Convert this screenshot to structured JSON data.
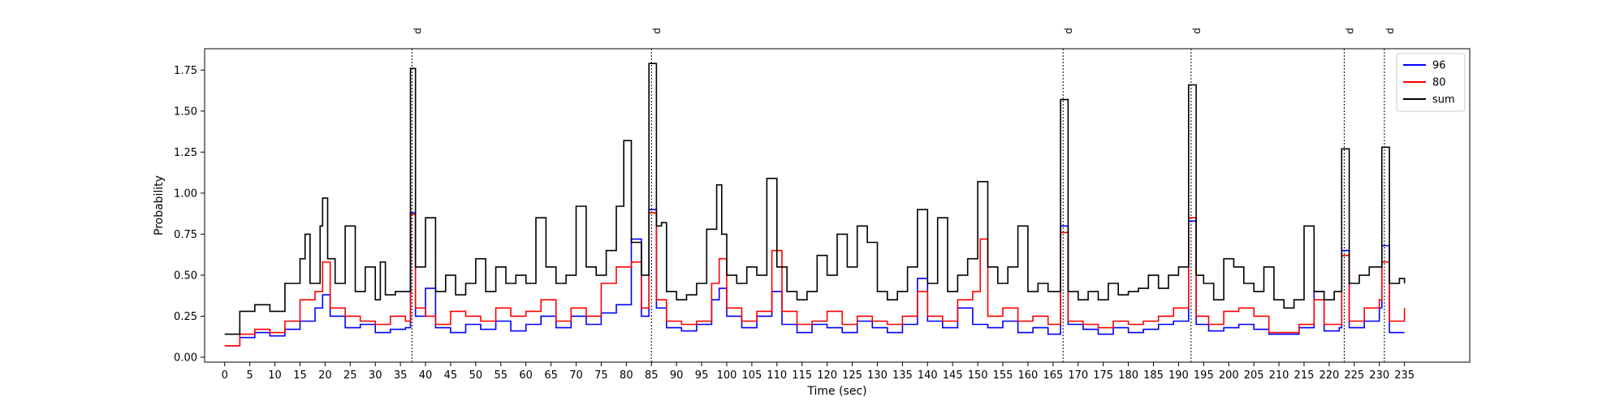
{
  "chart_data": {
    "type": "line",
    "xlabel": "Time (sec)",
    "ylabel": "Probability",
    "xlim": [
      -4,
      248
    ],
    "ylim": [
      -0.03,
      1.88
    ],
    "x_ticks": [
      0,
      5,
      10,
      15,
      20,
      25,
      30,
      35,
      40,
      45,
      50,
      55,
      60,
      65,
      70,
      75,
      80,
      85,
      90,
      95,
      100,
      105,
      110,
      115,
      120,
      125,
      130,
      135,
      140,
      145,
      150,
      155,
      160,
      165,
      170,
      175,
      180,
      185,
      190,
      195,
      200,
      205,
      210,
      215,
      220,
      225,
      230,
      235
    ],
    "y_ticks": [
      0.0,
      0.25,
      0.5,
      0.75,
      1.0,
      1.25,
      1.5,
      1.75
    ],
    "y_tick_labels": [
      "0.00",
      "0.25",
      "0.50",
      "0.75",
      "1.00",
      "1.25",
      "1.50",
      "1.75"
    ],
    "grid": false,
    "legend_position": "top-right",
    "step": true,
    "markers": [
      {
        "x": 37.3,
        "label": "p"
      },
      {
        "x": 85.0,
        "label": "p"
      },
      {
        "x": 167.0,
        "label": "p"
      },
      {
        "x": 192.5,
        "label": "p"
      },
      {
        "x": 223.0,
        "label": "p"
      },
      {
        "x": 231.0,
        "label": "p"
      }
    ],
    "series": [
      {
        "name": "96",
        "color": "#0000ff",
        "points": [
          [
            0,
            0.07
          ],
          [
            3,
            0.12
          ],
          [
            6,
            0.15
          ],
          [
            9,
            0.13
          ],
          [
            12,
            0.17
          ],
          [
            15,
            0.22
          ],
          [
            18,
            0.3
          ],
          [
            19.5,
            0.38
          ],
          [
            21,
            0.25
          ],
          [
            24,
            0.18
          ],
          [
            27,
            0.2
          ],
          [
            30,
            0.15
          ],
          [
            33,
            0.17
          ],
          [
            36,
            0.18
          ],
          [
            37,
            0.88
          ],
          [
            38,
            0.25
          ],
          [
            40,
            0.42
          ],
          [
            42,
            0.18
          ],
          [
            45,
            0.15
          ],
          [
            48,
            0.2
          ],
          [
            51,
            0.17
          ],
          [
            54,
            0.22
          ],
          [
            57,
            0.16
          ],
          [
            60,
            0.2
          ],
          [
            63,
            0.25
          ],
          [
            66,
            0.18
          ],
          [
            69,
            0.25
          ],
          [
            72,
            0.2
          ],
          [
            75,
            0.27
          ],
          [
            78,
            0.32
          ],
          [
            81,
            0.72
          ],
          [
            83,
            0.25
          ],
          [
            84.5,
            0.9
          ],
          [
            86,
            0.3
          ],
          [
            88,
            0.18
          ],
          [
            91,
            0.16
          ],
          [
            94,
            0.2
          ],
          [
            97,
            0.35
          ],
          [
            98.5,
            0.42
          ],
          [
            100,
            0.25
          ],
          [
            103,
            0.18
          ],
          [
            106,
            0.25
          ],
          [
            109,
            0.4
          ],
          [
            111,
            0.2
          ],
          [
            114,
            0.15
          ],
          [
            117,
            0.2
          ],
          [
            120,
            0.18
          ],
          [
            123,
            0.15
          ],
          [
            126,
            0.22
          ],
          [
            129,
            0.18
          ],
          [
            132,
            0.15
          ],
          [
            135,
            0.2
          ],
          [
            138,
            0.48
          ],
          [
            140,
            0.22
          ],
          [
            143,
            0.18
          ],
          [
            146,
            0.3
          ],
          [
            149,
            0.2
          ],
          [
            152,
            0.18
          ],
          [
            155,
            0.22
          ],
          [
            158,
            0.15
          ],
          [
            161,
            0.18
          ],
          [
            164,
            0.14
          ],
          [
            166.5,
            0.8
          ],
          [
            168,
            0.2
          ],
          [
            171,
            0.17
          ],
          [
            174,
            0.14
          ],
          [
            177,
            0.18
          ],
          [
            180,
            0.15
          ],
          [
            183,
            0.17
          ],
          [
            186,
            0.2
          ],
          [
            189,
            0.22
          ],
          [
            192,
            0.83
          ],
          [
            193.5,
            0.2
          ],
          [
            196,
            0.16
          ],
          [
            199,
            0.18
          ],
          [
            202,
            0.2
          ],
          [
            205,
            0.17
          ],
          [
            208,
            0.14
          ],
          [
            211,
            0.14
          ],
          [
            214,
            0.18
          ],
          [
            217,
            0.4
          ],
          [
            219,
            0.16
          ],
          [
            222,
            0.18
          ],
          [
            222.5,
            0.65
          ],
          [
            224,
            0.18
          ],
          [
            227,
            0.22
          ],
          [
            230,
            0.3
          ],
          [
            230.5,
            0.68
          ],
          [
            232,
            0.15
          ],
          [
            235,
            0.15
          ]
        ]
      },
      {
        "name": "80",
        "color": "#ff0000",
        "points": [
          [
            0,
            0.07
          ],
          [
            3,
            0.14
          ],
          [
            6,
            0.17
          ],
          [
            9,
            0.15
          ],
          [
            12,
            0.22
          ],
          [
            15,
            0.35
          ],
          [
            18,
            0.4
          ],
          [
            19.5,
            0.58
          ],
          [
            21,
            0.3
          ],
          [
            24,
            0.25
          ],
          [
            27,
            0.22
          ],
          [
            30,
            0.2
          ],
          [
            33,
            0.25
          ],
          [
            36,
            0.22
          ],
          [
            37,
            0.87
          ],
          [
            38,
            0.3
          ],
          [
            40,
            0.25
          ],
          [
            42,
            0.2
          ],
          [
            45,
            0.28
          ],
          [
            48,
            0.25
          ],
          [
            51,
            0.22
          ],
          [
            54,
            0.3
          ],
          [
            57,
            0.25
          ],
          [
            60,
            0.28
          ],
          [
            63,
            0.35
          ],
          [
            66,
            0.22
          ],
          [
            69,
            0.3
          ],
          [
            72,
            0.25
          ],
          [
            75,
            0.45
          ],
          [
            78,
            0.55
          ],
          [
            81,
            0.58
          ],
          [
            83,
            0.3
          ],
          [
            84.5,
            0.88
          ],
          [
            86,
            0.35
          ],
          [
            88,
            0.22
          ],
          [
            91,
            0.2
          ],
          [
            94,
            0.22
          ],
          [
            97,
            0.45
          ],
          [
            98.5,
            0.6
          ],
          [
            100,
            0.3
          ],
          [
            103,
            0.22
          ],
          [
            106,
            0.28
          ],
          [
            109,
            0.65
          ],
          [
            111,
            0.28
          ],
          [
            114,
            0.2
          ],
          [
            117,
            0.22
          ],
          [
            120,
            0.28
          ],
          [
            123,
            0.2
          ],
          [
            126,
            0.25
          ],
          [
            129,
            0.22
          ],
          [
            132,
            0.2
          ],
          [
            135,
            0.25
          ],
          [
            138,
            0.4
          ],
          [
            140,
            0.25
          ],
          [
            143,
            0.22
          ],
          [
            146,
            0.35
          ],
          [
            149,
            0.4
          ],
          [
            150.5,
            0.72
          ],
          [
            152,
            0.25
          ],
          [
            155,
            0.3
          ],
          [
            158,
            0.22
          ],
          [
            161,
            0.25
          ],
          [
            164,
            0.2
          ],
          [
            166.5,
            0.76
          ],
          [
            168,
            0.22
          ],
          [
            171,
            0.2
          ],
          [
            174,
            0.18
          ],
          [
            177,
            0.22
          ],
          [
            180,
            0.2
          ],
          [
            183,
            0.22
          ],
          [
            186,
            0.25
          ],
          [
            189,
            0.3
          ],
          [
            192,
            0.85
          ],
          [
            193.5,
            0.25
          ],
          [
            196,
            0.2
          ],
          [
            199,
            0.28
          ],
          [
            202,
            0.3
          ],
          [
            205,
            0.25
          ],
          [
            208,
            0.15
          ],
          [
            211,
            0.15
          ],
          [
            214,
            0.2
          ],
          [
            217,
            0.35
          ],
          [
            219,
            0.2
          ],
          [
            222,
            0.2
          ],
          [
            222.5,
            0.62
          ],
          [
            224,
            0.22
          ],
          [
            227,
            0.3
          ],
          [
            230,
            0.35
          ],
          [
            230.5,
            0.58
          ],
          [
            232,
            0.22
          ],
          [
            235,
            0.3
          ]
        ]
      },
      {
        "name": "sum",
        "color": "#000000",
        "points": [
          [
            0,
            0.14
          ],
          [
            3,
            0.28
          ],
          [
            6,
            0.32
          ],
          [
            9,
            0.28
          ],
          [
            12,
            0.45
          ],
          [
            15,
            0.6
          ],
          [
            16,
            0.75
          ],
          [
            17,
            0.45
          ],
          [
            19,
            0.8
          ],
          [
            19.5,
            0.97
          ],
          [
            20.5,
            0.6
          ],
          [
            22,
            0.45
          ],
          [
            24,
            0.8
          ],
          [
            26,
            0.4
          ],
          [
            28,
            0.55
          ],
          [
            30,
            0.35
          ],
          [
            31,
            0.58
          ],
          [
            32,
            0.38
          ],
          [
            34,
            0.4
          ],
          [
            36,
            0.4
          ],
          [
            37,
            1.76
          ],
          [
            38,
            0.55
          ],
          [
            40,
            0.85
          ],
          [
            42,
            0.4
          ],
          [
            44,
            0.5
          ],
          [
            46,
            0.38
          ],
          [
            48,
            0.45
          ],
          [
            50,
            0.6
          ],
          [
            52,
            0.4
          ],
          [
            54,
            0.55
          ],
          [
            56,
            0.45
          ],
          [
            58,
            0.5
          ],
          [
            60,
            0.45
          ],
          [
            62,
            0.85
          ],
          [
            64,
            0.55
          ],
          [
            66,
            0.45
          ],
          [
            68,
            0.5
          ],
          [
            70,
            0.92
          ],
          [
            72,
            0.55
          ],
          [
            74,
            0.5
          ],
          [
            76,
            0.65
          ],
          [
            78,
            0.92
          ],
          [
            79.5,
            1.32
          ],
          [
            81,
            0.7
          ],
          [
            83,
            0.5
          ],
          [
            84.5,
            1.79
          ],
          [
            86,
            0.8
          ],
          [
            87,
            0.82
          ],
          [
            88,
            0.4
          ],
          [
            90,
            0.35
          ],
          [
            92,
            0.38
          ],
          [
            94,
            0.45
          ],
          [
            96,
            0.78
          ],
          [
            98,
            1.05
          ],
          [
            99,
            0.75
          ],
          [
            100,
            0.5
          ],
          [
            102,
            0.45
          ],
          [
            104,
            0.55
          ],
          [
            106,
            0.5
          ],
          [
            108,
            1.09
          ],
          [
            110,
            0.55
          ],
          [
            112,
            0.4
          ],
          [
            114,
            0.35
          ],
          [
            116,
            0.4
          ],
          [
            118,
            0.62
          ],
          [
            120,
            0.5
          ],
          [
            122,
            0.75
          ],
          [
            124,
            0.55
          ],
          [
            126,
            0.8
          ],
          [
            128,
            0.7
          ],
          [
            130,
            0.4
          ],
          [
            132,
            0.35
          ],
          [
            134,
            0.4
          ],
          [
            136,
            0.55
          ],
          [
            138,
            0.9
          ],
          [
            140,
            0.45
          ],
          [
            142,
            0.85
          ],
          [
            144,
            0.4
          ],
          [
            146,
            0.5
          ],
          [
            148,
            0.6
          ],
          [
            150,
            1.07
          ],
          [
            152,
            0.55
          ],
          [
            154,
            0.45
          ],
          [
            156,
            0.55
          ],
          [
            158,
            0.8
          ],
          [
            160,
            0.4
          ],
          [
            162,
            0.45
          ],
          [
            164,
            0.4
          ],
          [
            166.5,
            1.57
          ],
          [
            168,
            0.4
          ],
          [
            170,
            0.35
          ],
          [
            172,
            0.4
          ],
          [
            174,
            0.35
          ],
          [
            176,
            0.45
          ],
          [
            178,
            0.38
          ],
          [
            180,
            0.4
          ],
          [
            182,
            0.42
          ],
          [
            184,
            0.5
          ],
          [
            186,
            0.42
          ],
          [
            188,
            0.5
          ],
          [
            190,
            0.55
          ],
          [
            192,
            1.66
          ],
          [
            193.5,
            0.5
          ],
          [
            195,
            0.45
          ],
          [
            197,
            0.35
          ],
          [
            199,
            0.6
          ],
          [
            201,
            0.55
          ],
          [
            203,
            0.45
          ],
          [
            205,
            0.4
          ],
          [
            207,
            0.55
          ],
          [
            209,
            0.35
          ],
          [
            211,
            0.3
          ],
          [
            213,
            0.35
          ],
          [
            215,
            0.8
          ],
          [
            217,
            0.4
          ],
          [
            219,
            0.35
          ],
          [
            221,
            0.4
          ],
          [
            222.5,
            1.27
          ],
          [
            224,
            0.45
          ],
          [
            226,
            0.5
          ],
          [
            228,
            0.55
          ],
          [
            230.5,
            1.28
          ],
          [
            232,
            0.45
          ],
          [
            234,
            0.48
          ],
          [
            235,
            0.45
          ]
        ]
      }
    ]
  }
}
